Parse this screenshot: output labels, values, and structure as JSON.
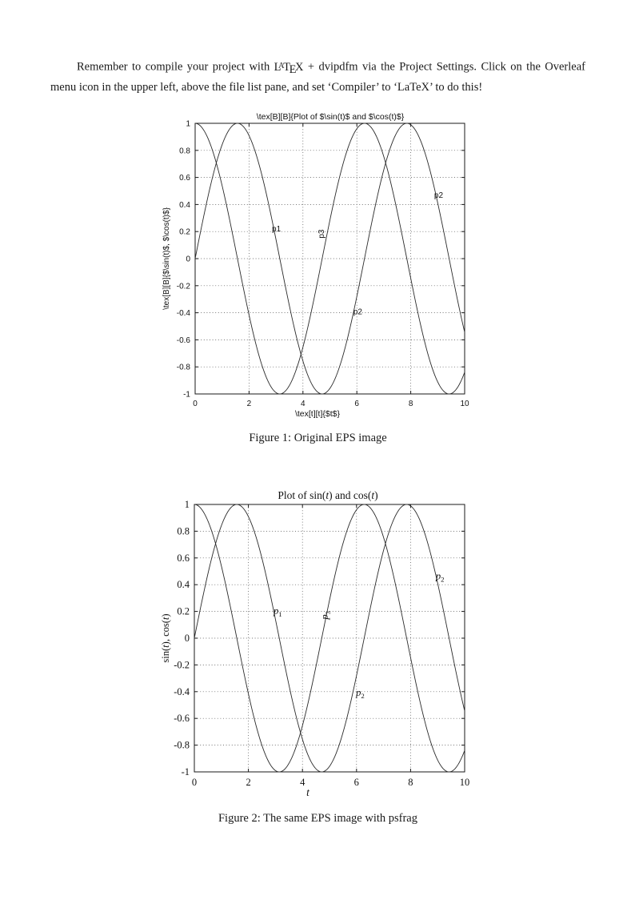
{
  "page": {
    "paragraph": {
      "before_logo": "Remember to compile your project with ",
      "latex_logo": "LaTeX",
      "after_logo": " + dvipdfm via the Project Settings. Click on the Overleaf menu icon in the upper left, above the file list pane, and set ‘Compiler’ to ‘LaTeX’ to do this!"
    }
  },
  "figures": [
    {
      "caption": "Figure 1: Original EPS image"
    },
    {
      "caption": "Figure 2: The same EPS image with psfrag"
    }
  ],
  "chart_data": [
    {
      "id": "figure1",
      "type": "line",
      "title": "\\tex[B][B]{Plot of $\\sin(t)$ and $\\cos(t)$}",
      "xlabel": "\\tex[t][t]{$t$}",
      "ylabel": "\\tex[B][B]{$\\sin(t)$, $\\cos(t)$}",
      "xlim": [
        0,
        10
      ],
      "ylim": [
        -1,
        1
      ],
      "xticks": [
        0,
        2,
        4,
        6,
        8,
        10
      ],
      "yticks": [
        1,
        0.8,
        0.6,
        0.4,
        0.2,
        0,
        -0.2,
        -0.4,
        -0.6,
        -0.8,
        -1
      ],
      "grid": true,
      "legend": "none",
      "line_color": "#2a2a2a",
      "series": [
        {
          "name": "sin(t)",
          "fn": "sin",
          "x_start": 0,
          "x_end": 10
        },
        {
          "name": "cos(t)",
          "fn": "cos",
          "x_start": 0,
          "x_end": 10
        }
      ],
      "annotations": [
        {
          "text": "p1",
          "x": 2.85,
          "y": 0.2,
          "rotation": 0
        },
        {
          "text": "p3",
          "x": 4.78,
          "y": 0.15,
          "rotation": -90
        },
        {
          "text": "p2",
          "x": 8.87,
          "y": 0.45,
          "rotation": 0
        },
        {
          "text": "p2",
          "x": 5.87,
          "y": -0.41,
          "rotation": 0
        }
      ]
    },
    {
      "id": "figure2",
      "type": "line",
      "title": "Plot of sin(t) and cos(t)",
      "title_runs": [
        {
          "t": "Plot of sin("
        },
        {
          "t": "t",
          "i": true
        },
        {
          "t": ") and cos("
        },
        {
          "t": "t",
          "i": true
        },
        {
          "t": ")"
        }
      ],
      "xlabel": "t",
      "xlabel_runs": [
        {
          "t": "t",
          "i": true
        }
      ],
      "ylabel": "sin(t), cos(t)",
      "ylabel_runs": [
        {
          "t": "sin("
        },
        {
          "t": "t",
          "i": true
        },
        {
          "t": "), cos("
        },
        {
          "t": "t",
          "i": true
        },
        {
          "t": ")"
        }
      ],
      "xlim": [
        0,
        10
      ],
      "ylim": [
        -1,
        1
      ],
      "xticks": [
        0,
        2,
        4,
        6,
        8,
        10
      ],
      "yticks": [
        1,
        0.8,
        0.6,
        0.4,
        0.2,
        0,
        -0.2,
        -0.4,
        -0.6,
        -0.8,
        -1
      ],
      "grid": true,
      "legend": "none",
      "line_color": "#2a2a2a",
      "series": [
        {
          "name": "sin(t)",
          "fn": "sin",
          "x_start": 0,
          "x_end": 10
        },
        {
          "name": "cos(t)",
          "fn": "cos",
          "x_start": 0,
          "x_end": 10
        }
      ],
      "annotations": [
        {
          "text": "p1",
          "base": "p",
          "sub": "1",
          "x": 2.93,
          "y": 0.18,
          "rotation": 0
        },
        {
          "text": "p3",
          "base": "p",
          "sub": "3",
          "x": 4.94,
          "y": 0.14,
          "rotation": -90
        },
        {
          "text": "p2",
          "base": "p",
          "sub": "2",
          "x": 8.93,
          "y": 0.44,
          "rotation": 0
        },
        {
          "text": "p2",
          "base": "p",
          "sub": "2",
          "x": 5.98,
          "y": -0.43,
          "rotation": 0
        }
      ]
    }
  ]
}
